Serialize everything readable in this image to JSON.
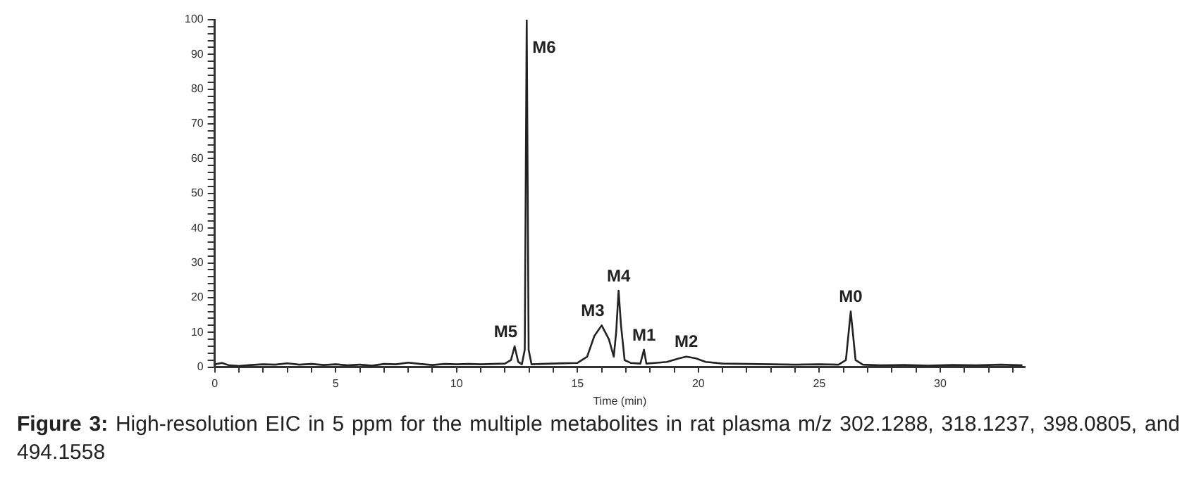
{
  "chart_data": {
    "type": "line",
    "xlabel": "Time (min)",
    "color": "#222222",
    "marker": "none",
    "line_style": "solid",
    "grid": false,
    "legend": false,
    "x": [
      0,
      0.3,
      0.6,
      1,
      1.5,
      2,
      2.5,
      3,
      3.5,
      4,
      4.5,
      5,
      5.5,
      6,
      6.5,
      7,
      7.5,
      8,
      8.5,
      9,
      9.5,
      10,
      10.5,
      11,
      11.5,
      12,
      12.25,
      12.4,
      12.55,
      12.7,
      12.82,
      12.9,
      12.98,
      13.1,
      13.5,
      14,
      14.5,
      15,
      15.4,
      15.7,
      16.0,
      16.3,
      16.5,
      16.6,
      16.7,
      16.8,
      16.95,
      17.2,
      17.6,
      17.75,
      17.85,
      18.2,
      18.7,
      19.2,
      19.5,
      19.9,
      20.3,
      21,
      22,
      23,
      24,
      25,
      25.8,
      26.1,
      26.3,
      26.5,
      26.8,
      27.5,
      28.5,
      29.5,
      30.5,
      31.5,
      32.5,
      33.4
    ],
    "values": [
      0.8,
      1.2,
      0.5,
      0.3,
      0.6,
      0.8,
      0.7,
      1.1,
      0.7,
      0.9,
      0.6,
      0.8,
      0.5,
      0.7,
      0.4,
      0.9,
      0.8,
      1.3,
      0.9,
      0.6,
      0.9,
      0.8,
      0.9,
      0.8,
      0.9,
      1.0,
      2,
      6,
      1.5,
      0.8,
      5,
      100,
      5,
      0.8,
      0.9,
      1.0,
      1.1,
      1.2,
      3,
      9,
      12,
      8,
      3,
      10,
      22,
      12,
      2,
      1.2,
      1.0,
      5,
      1.0,
      1.2,
      1.5,
      2.5,
      3,
      2.5,
      1.5,
      1.0,
      0.9,
      0.8,
      0.7,
      0.8,
      0.7,
      2,
      16,
      2,
      0.7,
      0.5,
      0.6,
      0.4,
      0.6,
      0.5,
      0.7,
      0.5
    ],
    "xlim": [
      0,
      33.5
    ],
    "xticks": [
      0,
      {
        "value": 1,
        "label": null
      },
      {
        "value": 2,
        "label": null
      },
      {
        "value": 3,
        "label": null
      },
      {
        "value": 4,
        "label": null
      },
      5,
      {
        "value": 6,
        "label": null
      },
      {
        "value": 7,
        "label": null
      },
      {
        "value": 8,
        "label": null
      },
      {
        "value": 9,
        "label": null
      },
      10,
      {
        "value": 11,
        "label": null
      },
      {
        "value": 12,
        "label": null
      },
      {
        "value": 13,
        "label": null
      },
      {
        "value": 14,
        "label": null
      },
      15,
      {
        "value": 16,
        "label": null
      },
      {
        "value": 17,
        "label": null
      },
      {
        "value": 18,
        "label": null
      },
      {
        "value": 19,
        "label": null
      },
      20,
      {
        "value": 21,
        "label": null
      },
      {
        "value": 22,
        "label": null
      },
      {
        "value": 23,
        "label": null
      },
      {
        "value": 24,
        "label": null
      },
      25,
      {
        "value": 26,
        "label": null
      },
      {
        "value": 27,
        "label": null
      },
      {
        "value": 28,
        "label": null
      },
      {
        "value": 29,
        "label": null
      },
      30,
      {
        "value": 31,
        "label": null
      },
      {
        "value": 32,
        "label": null
      },
      {
        "value": 33,
        "label": null
      }
    ],
    "ylim": [
      0,
      100
    ],
    "yticks": [
      0,
      {
        "value": 2,
        "label": null
      },
      {
        "value": 4,
        "label": null
      },
      {
        "value": 6,
        "label": null
      },
      {
        "value": 8,
        "label": null
      },
      10,
      {
        "value": 12,
        "label": null
      },
      {
        "value": 14,
        "label": null
      },
      {
        "value": 16,
        "label": null
      },
      {
        "value": 18,
        "label": null
      },
      20,
      {
        "value": 22,
        "label": null
      },
      {
        "value": 24,
        "label": null
      },
      {
        "value": 26,
        "label": null
      },
      {
        "value": 28,
        "label": null
      },
      30,
      {
        "value": 32,
        "label": null
      },
      {
        "value": 34,
        "label": null
      },
      {
        "value": 36,
        "label": null
      },
      {
        "value": 38,
        "label": null
      },
      40,
      {
        "value": 42,
        "label": null
      },
      {
        "value": 44,
        "label": null
      },
      {
        "value": 46,
        "label": null
      },
      {
        "value": 48,
        "label": null
      },
      50,
      {
        "value": 52,
        "label": null
      },
      {
        "value": 54,
        "label": null
      },
      {
        "value": 56,
        "label": null
      },
      {
        "value": 58,
        "label": null
      },
      60,
      {
        "value": 62,
        "label": null
      },
      {
        "value": 64,
        "label": null
      },
      {
        "value": 66,
        "label": null
      },
      {
        "value": 68,
        "label": null
      },
      70,
      {
        "value": 72,
        "label": null
      },
      {
        "value": 74,
        "label": null
      },
      {
        "value": 76,
        "label": null
      },
      {
        "value": 78,
        "label": null
      },
      80,
      {
        "value": 82,
        "label": null
      },
      {
        "value": 84,
        "label": null
      },
      {
        "value": 86,
        "label": null
      },
      {
        "value": 88,
        "label": null
      },
      90,
      {
        "value": 92,
        "label": null
      },
      {
        "value": 94,
        "label": null
      },
      {
        "value": 96,
        "label": null
      },
      {
        "value": 98,
        "label": null
      },
      100
    ],
    "annotations": [
      {
        "text": "M5",
        "x": 12.4,
        "y": 6
      },
      {
        "text": "M6",
        "x": 12.9,
        "y": 100
      },
      {
        "text": "M3",
        "x": 16.0,
        "y": 12
      },
      {
        "text": "M4",
        "x": 16.7,
        "y": 22
      },
      {
        "text": "M1",
        "x": 17.75,
        "y": 5
      },
      {
        "text": "M2",
        "x": 19.5,
        "y": 3
      },
      {
        "text": "M0",
        "x": 26.3,
        "y": 16
      },
      "Figure 3: High-resolution EIC in 5 ppm for the multiple metabolites in rat plasma m/z 302.1288, 318.1237, 398.0805, and 494.1558"
    ]
  }
}
